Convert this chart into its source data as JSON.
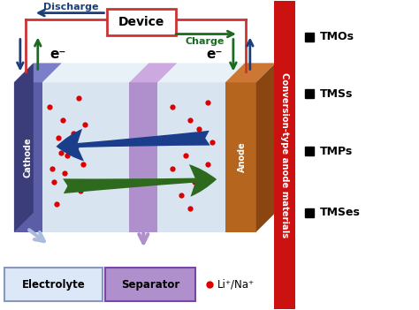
{
  "fig_width": 4.74,
  "fig_height": 3.51,
  "dpi": 100,
  "bg_color": "#ffffff",
  "cathode_color_front": "#5b5ea6",
  "cathode_color_top": "#7b7ec8",
  "cathode_color_side": "#3a3d7a",
  "anode_color_front": "#b5651d",
  "anode_color_top": "#cc7733",
  "anode_color_side": "#8b4510",
  "separator_color": "#b090cc",
  "separator_top_color": "#ccaae0",
  "interior_color": "#d8e4f0",
  "interior_top_color": "#e8f0f8",
  "interior_right_color": "#c0d0e0",
  "red_bar_color": "#cc1111",
  "device_fc": "#ffffff",
  "device_ec": "#cc3333",
  "discharge_color": "#1a3d7c",
  "charge_color": "#1a6b20",
  "arrow_blue": "#1a3d8c",
  "arrow_green": "#2d6a1e",
  "electrolyte_fc": "#dce8f8",
  "electrolyte_ec": "#8899bb",
  "separator_box_fc": "#b090cc",
  "separator_box_ec": "#7a44aa",
  "dot_color": "#dd0000",
  "legend_items": [
    "TMOs",
    "TMSs",
    "TMPs",
    "TMSes"
  ],
  "rotated_label": "Conversion-type anode materials"
}
